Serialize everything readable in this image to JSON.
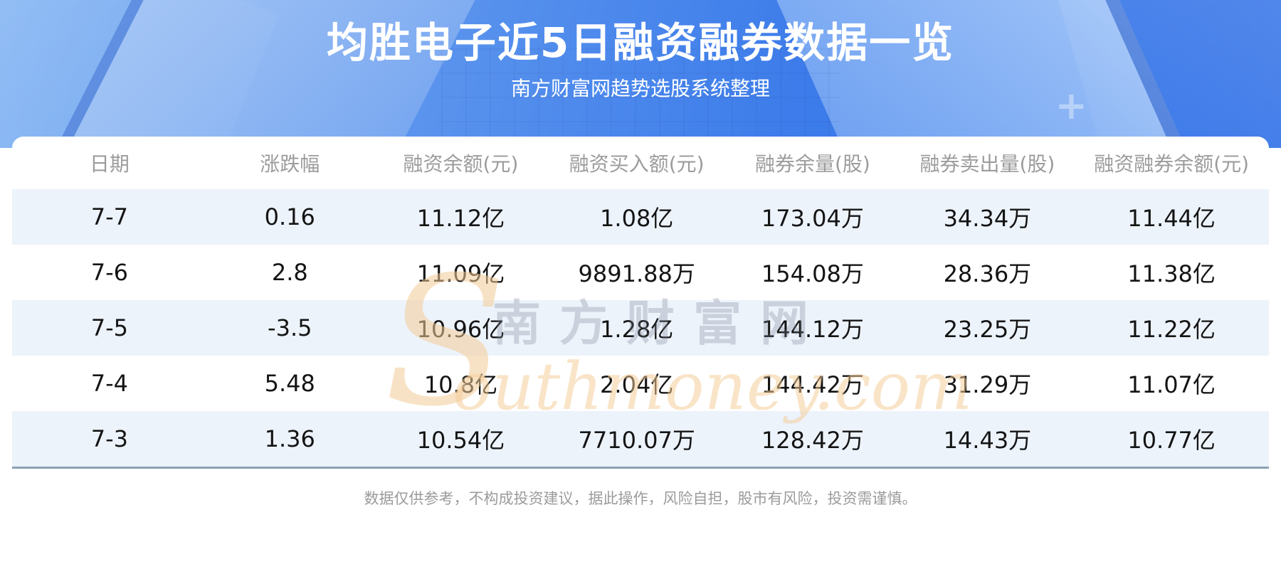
{
  "header": {
    "title": "均胜电子近5日融资融券数据一览",
    "subtitle": "南方财富网趋势选股系统整理"
  },
  "chart_data": {
    "type": "table",
    "title": "均胜电子近5日融资融券数据一览",
    "subtitle": "南方财富网趋势选股系统整理",
    "columns": [
      "日期",
      "涨跌幅",
      "融资余额(元)",
      "融资买入额(元)",
      "融券余量(股)",
      "融券卖出量(股)",
      "融资融券余额(元)"
    ],
    "rows": [
      [
        "7-7",
        "0.16",
        "11.12亿",
        "1.08亿",
        "173.04万",
        "34.34万",
        "11.44亿"
      ],
      [
        "7-6",
        "2.8",
        "11.09亿",
        "9891.88万",
        "154.08万",
        "28.36万",
        "11.38亿"
      ],
      [
        "7-5",
        "-3.5",
        "10.96亿",
        "1.28亿",
        "144.12万",
        "23.25万",
        "11.22亿"
      ],
      [
        "7-4",
        "5.48",
        "10.8亿",
        "2.04亿",
        "144.42万",
        "31.29万",
        "11.07亿"
      ],
      [
        "7-3",
        "1.36",
        "10.54亿",
        "7710.07万",
        "128.42万",
        "14.43万",
        "10.77亿"
      ]
    ],
    "layout": {
      "row_striping": "odd rows light blue",
      "alignment": "center"
    }
  },
  "footer": {
    "disclaimer": "数据仅供参考，不构成投资建议，据此操作，风险自担，股市有风险，投资需谨慎。"
  },
  "watermark": {
    "en_initial": "S",
    "cn": "南方财富网",
    "en_rest": "outhmoney.com"
  },
  "decor": {
    "plus_glyph": "+"
  },
  "colors": {
    "hero_gradient_start": "#7BAFF2",
    "hero_gradient_end": "#2E6FE7",
    "row_stripe": "#EDF3FB",
    "divider": "#8CA1B5",
    "column_header_text": "#9C9C9C",
    "cell_text": "#141414",
    "footer_text": "#9B9B9B",
    "watermark_orange": "#F3CB96",
    "title_text": "#FFFFFF"
  }
}
